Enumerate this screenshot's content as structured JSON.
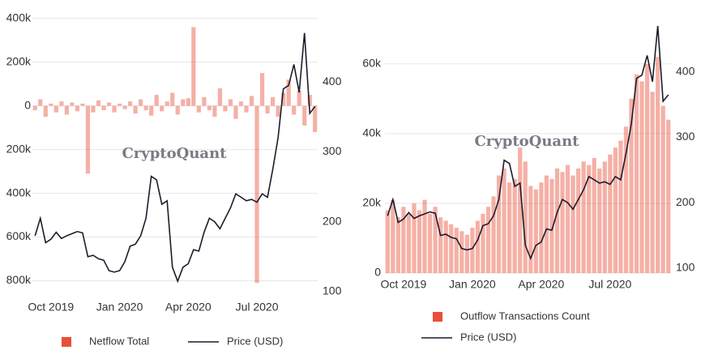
{
  "chart_data": [
    {
      "type": "bar",
      "watermark": "CryptoQuant",
      "categories": [
        null,
        null,
        null,
        "Oct 2019",
        null,
        null,
        null,
        null,
        null,
        null,
        null,
        null,
        null,
        null,
        null,
        null,
        "Jan 2020",
        null,
        null,
        null,
        null,
        null,
        null,
        null,
        null,
        null,
        null,
        null,
        null,
        "Apr 2020",
        null,
        null,
        null,
        null,
        null,
        null,
        null,
        null,
        null,
        null,
        null,
        null,
        "Jul 2020",
        null,
        null,
        null,
        null,
        null,
        null,
        null,
        null,
        null,
        null,
        null
      ],
      "series": [
        {
          "name": "Netflow Total",
          "color": "#e8503a",
          "values": [
            -20000,
            30000,
            -50000,
            10000,
            -30000,
            20000,
            -40000,
            15000,
            -25000,
            10000,
            -310000,
            -30000,
            25000,
            -20000,
            15000,
            -30000,
            10000,
            -15000,
            20000,
            -35000,
            30000,
            -20000,
            -45000,
            50000,
            -25000,
            20000,
            60000,
            -40000,
            30000,
            35000,
            360000,
            -30000,
            40000,
            -20000,
            -50000,
            80000,
            -25000,
            30000,
            -60000,
            20000,
            -30000,
            45000,
            -810000,
            150000,
            -35000,
            40000,
            -50000,
            60000,
            120000,
            -40000,
            70000,
            -90000,
            50000,
            -120000
          ]
        },
        {
          "name": "Price (USD)",
          "color": "#1c1c2b",
          "axis": "y2",
          "values": [
            180,
            205,
            170,
            175,
            185,
            176,
            180,
            183,
            186,
            184,
            150,
            152,
            147,
            145,
            130,
            128,
            130,
            143,
            165,
            168,
            180,
            205,
            265,
            260,
            225,
            230,
            135,
            115,
            135,
            140,
            160,
            158,
            185,
            205,
            200,
            190,
            205,
            220,
            240,
            235,
            230,
            232,
            228,
            240,
            235,
            275,
            320,
            390,
            395,
            425,
            385,
            470,
            355,
            365
          ]
        }
      ],
      "ylim": [
        -850000,
        410000
      ],
      "yticks": [
        {
          "value": -800000,
          "label": "800k"
        },
        {
          "value": -600000,
          "label": "600k"
        },
        {
          "value": -400000,
          "label": "400k"
        },
        {
          "value": -200000,
          "label": "200k"
        },
        0,
        {
          "value": 200000,
          "label": "200k"
        },
        {
          "value": 400000,
          "label": "400k"
        }
      ],
      "y2lim": [
        100,
        494
      ],
      "y2ticks": [
        100,
        200,
        300,
        400
      ],
      "grid": true
    },
    {
      "type": "bar",
      "watermark": "CryptoQuant",
      "categories": [
        null,
        null,
        null,
        "Oct 2019",
        null,
        null,
        null,
        null,
        null,
        null,
        null,
        null,
        null,
        null,
        null,
        null,
        "Jan 2020",
        null,
        null,
        null,
        null,
        null,
        null,
        null,
        null,
        null,
        null,
        null,
        null,
        "Apr 2020",
        null,
        null,
        null,
        null,
        null,
        null,
        null,
        null,
        null,
        null,
        null,
        null,
        "Jul 2020",
        null,
        null,
        null,
        null,
        null,
        null,
        null,
        null,
        null,
        null,
        null
      ],
      "series": [
        {
          "name": "Outflow Transactions Count",
          "color": "#e8503a",
          "values": [
            18000,
            21000,
            16000,
            19000,
            17000,
            20000,
            18000,
            21000,
            17000,
            19000,
            16000,
            15000,
            14000,
            13000,
            12000,
            11000,
            13000,
            15000,
            17000,
            19000,
            22000,
            28000,
            30000,
            26000,
            27000,
            36000,
            32000,
            25000,
            24000,
            26000,
            28000,
            27000,
            30000,
            29000,
            31000,
            28000,
            30000,
            32000,
            31000,
            33000,
            30000,
            32000,
            34000,
            36000,
            38000,
            42000,
            50000,
            57000,
            55000,
            60000,
            52000,
            62000,
            48000,
            44000
          ]
        },
        {
          "name": "Price (USD)",
          "color": "#1c1c2b",
          "axis": "y2",
          "values": [
            180,
            205,
            170,
            175,
            185,
            176,
            180,
            183,
            186,
            184,
            150,
            152,
            147,
            145,
            130,
            128,
            130,
            143,
            165,
            168,
            180,
            205,
            265,
            260,
            225,
            230,
            135,
            115,
            135,
            140,
            160,
            158,
            185,
            205,
            200,
            190,
            205,
            220,
            240,
            235,
            230,
            232,
            228,
            240,
            235,
            275,
            320,
            390,
            395,
            425,
            385,
            470,
            355,
            365
          ]
        }
      ],
      "ylim": [
        0,
        73700
      ],
      "yticks": [
        0,
        {
          "value": 20000,
          "label": "20k"
        },
        {
          "value": 40000,
          "label": "40k"
        },
        {
          "value": 60000,
          "label": "60k"
        }
      ],
      "y2lim": [
        92.6,
        485
      ],
      "y2ticks": [
        100,
        200,
        300,
        400
      ],
      "grid": true
    }
  ]
}
